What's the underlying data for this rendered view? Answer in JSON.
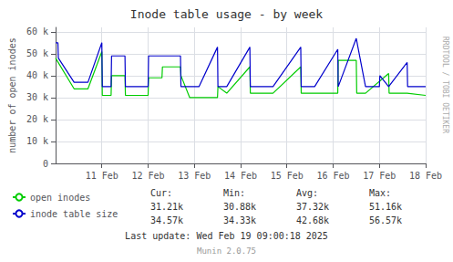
{
  "chart_data": {
    "type": "line",
    "title": "Inode table usage - by week",
    "ylabel": "number of open inodes",
    "xlim": [
      0,
      8.0
    ],
    "xticks": [
      {
        "value": 1,
        "label": "11 Feb"
      },
      {
        "value": 2,
        "label": "12 Feb"
      },
      {
        "value": 3,
        "label": "13 Feb"
      },
      {
        "value": 4,
        "label": "14 Feb"
      },
      {
        "value": 5,
        "label": "15 Feb"
      },
      {
        "value": 6,
        "label": "16 Feb"
      },
      {
        "value": 7,
        "label": "17 Feb"
      },
      {
        "value": 8,
        "label": "18 Feb"
      }
    ],
    "ylim": [
      0,
      62000
    ],
    "yticks": [
      0,
      {
        "value": 10000,
        "label": "10 k"
      },
      {
        "value": 20000,
        "label": "20 k"
      },
      {
        "value": 30000,
        "label": "30 k"
      },
      {
        "value": 40000,
        "label": "40 k"
      },
      {
        "value": 50000,
        "label": "50 k"
      },
      {
        "value": 60000,
        "label": "60 k"
      }
    ],
    "grid": true,
    "legend": "lower left",
    "series": [
      {
        "name": "open inodes",
        "color": "#00cc00",
        "x": [
          0,
          0.4,
          0.41,
          0.7,
          0.71,
          1.0,
          1.01,
          1.2,
          1.21,
          1.5,
          1.51,
          1.7,
          1.71,
          2.0,
          2.01,
          2.3,
          2.31,
          2.7,
          2.71,
          2.9,
          2.91,
          3.1,
          3.11,
          3.5,
          3.51,
          3.7,
          3.71,
          4.2,
          4.21,
          4.5,
          4.51,
          4.7,
          4.71,
          5.3,
          5.31,
          5.6,
          5.61,
          6.1,
          6.11,
          6.5,
          6.51,
          6.7,
          6.71,
          7.2,
          7.21,
          7.6,
          7.61,
          8.0
        ],
        "values": [
          48000,
          34000,
          34000,
          34000,
          34000,
          51000,
          31000,
          31000,
          40000,
          40000,
          31000,
          31000,
          31000,
          31000,
          39000,
          39000,
          44000,
          44000,
          40000,
          30000,
          30000,
          30000,
          30000,
          30000,
          35000,
          32000,
          32000,
          44000,
          32000,
          32000,
          32000,
          32000,
          32000,
          44000,
          32000,
          32000,
          32000,
          32000,
          47000,
          47000,
          32000,
          32000,
          32000,
          41000,
          32000,
          32000,
          32000,
          31000
        ]
      },
      {
        "name": "inode table size",
        "color": "#0000cc",
        "x": [
          0,
          0.05,
          0.06,
          0.4,
          0.41,
          0.7,
          0.71,
          1.0,
          1.01,
          1.2,
          1.21,
          1.5,
          1.51,
          1.7,
          1.71,
          2.0,
          2.01,
          2.3,
          2.31,
          2.7,
          2.71,
          2.9,
          2.91,
          3.1,
          3.11,
          3.5,
          3.51,
          3.7,
          3.71,
          4.2,
          4.21,
          4.5,
          4.51,
          4.7,
          4.71,
          5.3,
          5.31,
          5.6,
          5.61,
          6.1,
          6.11,
          6.5,
          6.51,
          6.7,
          6.71,
          7.0,
          7.01,
          7.2,
          7.21,
          7.6,
          7.61,
          8.0
        ],
        "values": [
          55000,
          55000,
          48000,
          37000,
          37000,
          37000,
          37000,
          55000,
          35000,
          35000,
          49000,
          49000,
          35000,
          35000,
          35000,
          35000,
          49000,
          49000,
          49000,
          49000,
          35000,
          35000,
          35000,
          35000,
          35000,
          53000,
          35000,
          35000,
          35000,
          53000,
          35000,
          35000,
          35000,
          35000,
          35000,
          53000,
          35000,
          35000,
          35000,
          52000,
          35000,
          57000,
          57000,
          35000,
          35000,
          35000,
          40000,
          35000,
          35000,
          46000,
          35000,
          35000
        ]
      }
    ],
    "table": {
      "columns": [
        "Cur:",
        "Min:",
        "Avg:",
        "Max:"
      ],
      "rows": [
        [
          "31.21k",
          "30.88k",
          "37.32k",
          "51.16k"
        ],
        [
          "34.57k",
          "34.33k",
          "42.68k",
          "56.57k"
        ]
      ]
    },
    "annotations": [
      "Last update: Wed Feb 19 09:00:18 2025",
      "Munin 2.0.75",
      "RRDTOOL / TOBI OETIKER"
    ]
  }
}
